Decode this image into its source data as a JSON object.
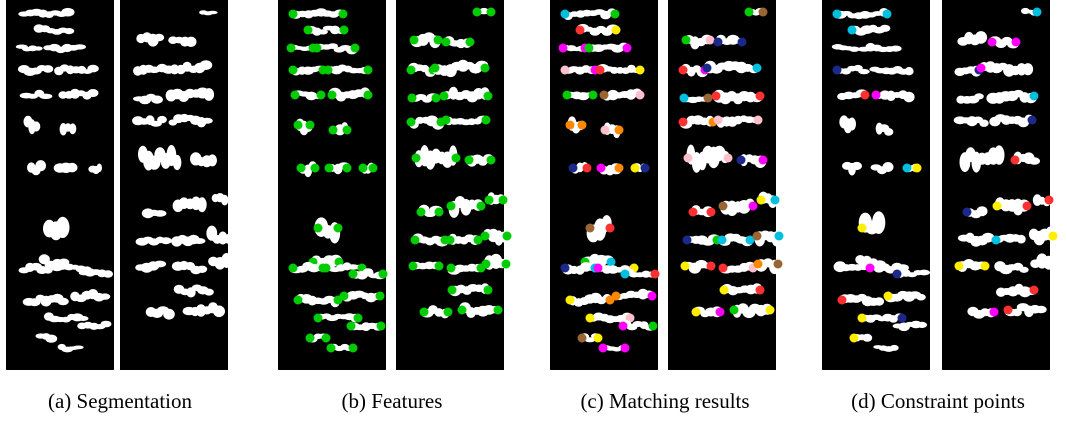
{
  "captions": [
    "(a) Segmentation",
    "(b) Features",
    "(c) Matching results",
    "(d) Constraint points"
  ]
}
